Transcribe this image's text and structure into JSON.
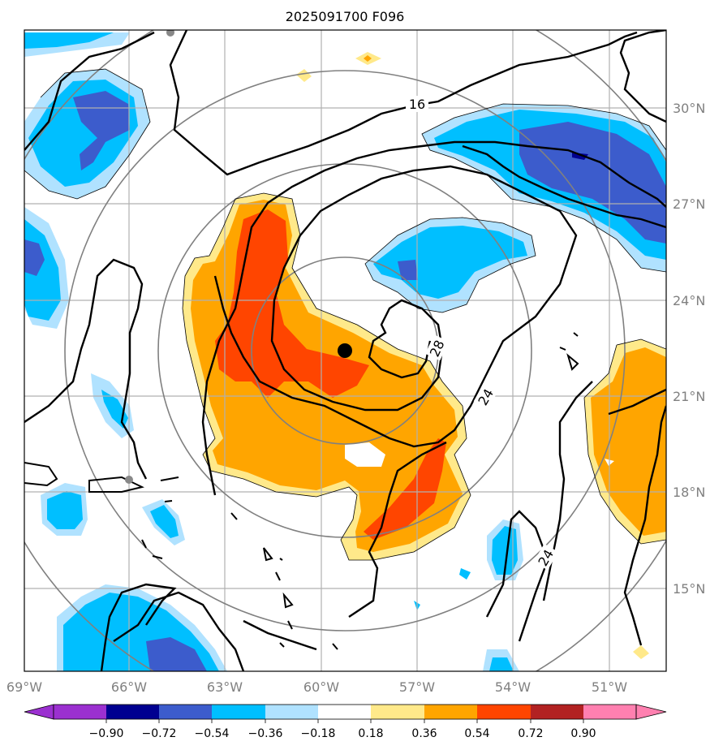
{
  "title": "2025091700 F096",
  "map": {
    "lon_range": [
      "69°W",
      "48.5°W"
    ],
    "lat_range": [
      "12.5°N",
      "32.5°N"
    ],
    "lon_ticks": [
      "69°W",
      "66°W",
      "63°W",
      "60°W",
      "57°W",
      "54°W",
      "51°W"
    ],
    "lat_ticks": [
      "30°N",
      "27°N",
      "24°N",
      "21°N",
      "18°N",
      "15°N"
    ],
    "storm_center": {
      "lon": -59.3,
      "lat": 22.4
    },
    "contour_labels": [
      "16",
      "28",
      "24",
      "24"
    ],
    "range_rings": 4
  },
  "colorbar": {
    "ticks": [
      "−0.90",
      "−0.72",
      "−0.54",
      "−0.36",
      "−0.18",
      "0.18",
      "0.36",
      "0.54",
      "0.72",
      "0.90"
    ],
    "colors": [
      "#9b30d0",
      "#000090",
      "#3c5ccc",
      "#00bfff",
      "#b0e2ff",
      "#ffffff",
      "#ffe98a",
      "#ffa500",
      "#ff4500",
      "#b22222",
      "#ff80b0"
    ],
    "extend": "both"
  }
}
